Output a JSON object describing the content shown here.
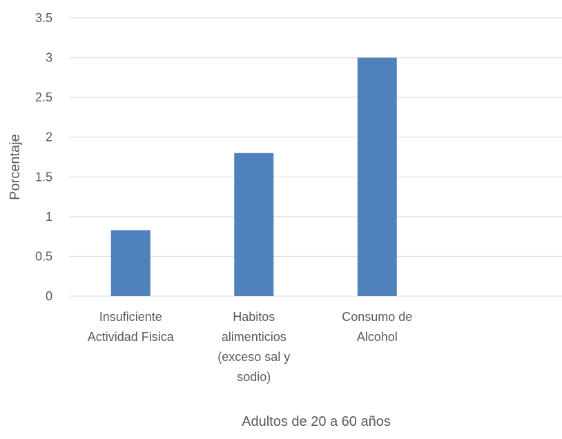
{
  "colors": {
    "bar": "#4f81bd",
    "grid": "#d9d9d9",
    "text": "#595959"
  },
  "chart_data": {
    "type": "bar",
    "title": "",
    "xlabel": "Adultos de 20 a 60 años",
    "ylabel": "Porcentaje",
    "ylim": [
      0,
      3.5
    ],
    "yticks": [
      "0",
      "0.5",
      "1",
      "1.5",
      "2",
      "2.5",
      "3",
      "3.5"
    ],
    "grid": true,
    "categories": [
      [
        "Insuficiente",
        "Actividad Fisica"
      ],
      [
        "Habitos",
        "alimenticios",
        "(exceso sal y",
        "sodio)"
      ],
      [
        "Consumo de",
        "Alcohol"
      ],
      [
        ""
      ]
    ],
    "values": [
      0.83,
      1.8,
      3.0,
      null
    ]
  }
}
